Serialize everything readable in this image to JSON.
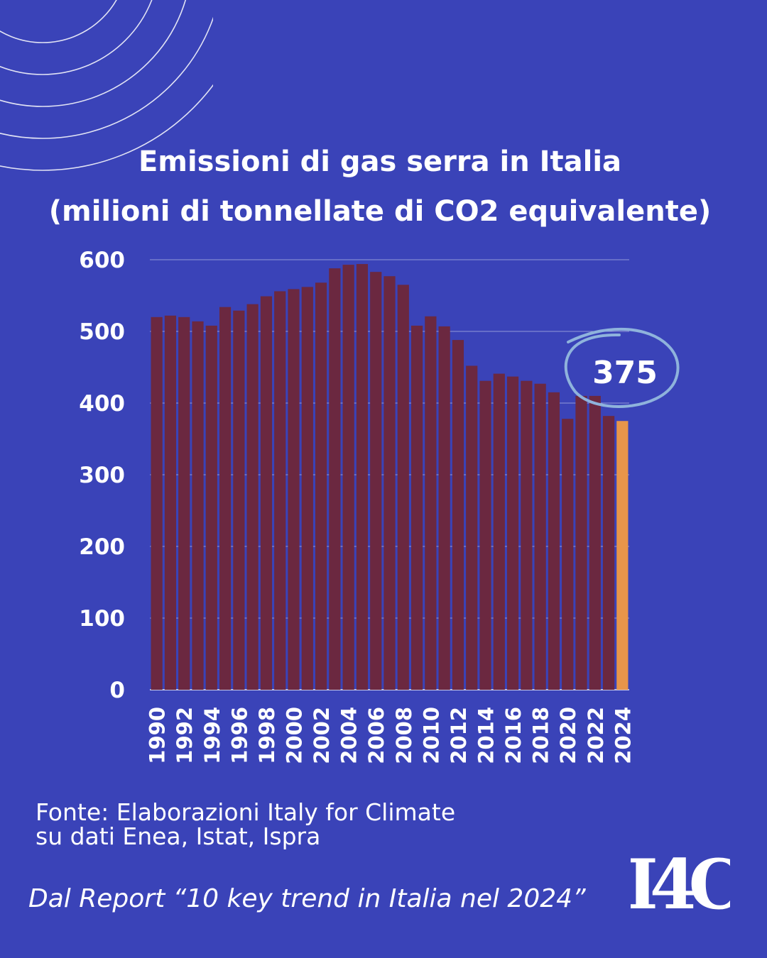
{
  "title_line1": "Emissioni di gas serra in Italia",
  "title_line2": "(milioni di tonnellate di CO2 equivalente)",
  "source_line1": "Fonte: Elaborazioni Italy for Climate",
  "source_line2": "su dati Enea, Istat, Ispra",
  "report_note": "Dal Report “10 key trend in Italia nel 2024”",
  "logo_text": "I4C",
  "callout_value": "375",
  "colors": {
    "background": "#3a43b8",
    "bar": "#6b2840",
    "highlight_bar": "#e8954a",
    "circle": "#8fb3dc",
    "text": "#ffffff"
  },
  "chart_data": {
    "type": "bar",
    "title": "Emissioni di gas serra in Italia (milioni di tonnellate di CO2 equivalente)",
    "ylim": [
      0,
      600
    ],
    "yticks": [
      0,
      100,
      200,
      300,
      400,
      500,
      600
    ],
    "categories": [
      "1990",
      "1991",
      "1992",
      "1993",
      "1994",
      "1995",
      "1996",
      "1997",
      "1998",
      "1999",
      "2000",
      "2001",
      "2002",
      "2003",
      "2004",
      "2005",
      "2006",
      "2007",
      "2008",
      "2009",
      "2010",
      "2011",
      "2012",
      "2013",
      "2014",
      "2015",
      "2016",
      "2017",
      "2018",
      "2019",
      "2020",
      "2021",
      "2022",
      "2023",
      "2024"
    ],
    "xtick_labels": [
      "1990",
      "1992",
      "1994",
      "1996",
      "1998",
      "2000",
      "2002",
      "2004",
      "2006",
      "2008",
      "2010",
      "2012",
      "2014",
      "2016",
      "2018",
      "2020",
      "2022",
      "2024"
    ],
    "values": [
      520,
      522,
      520,
      514,
      508,
      534,
      529,
      538,
      549,
      556,
      559,
      562,
      568,
      588,
      593,
      594,
      583,
      577,
      565,
      508,
      521,
      507,
      488,
      452,
      431,
      441,
      437,
      431,
      427,
      415,
      378,
      410,
      410,
      382,
      375
    ],
    "highlight_index": 34,
    "grid": true
  }
}
